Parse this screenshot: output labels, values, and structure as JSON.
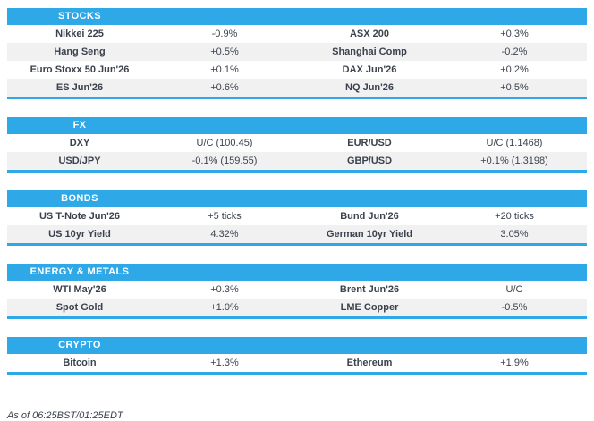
{
  "colors": {
    "header_bg": "#2FA8E8",
    "row_alt_bg": "#F1F1F2",
    "text": "#3B424E",
    "header_text": "#FFFFFF"
  },
  "sections": [
    {
      "title": "STOCKS",
      "rows": [
        [
          "Nikkei 225",
          "-0.9%",
          "ASX 200",
          "+0.3%"
        ],
        [
          "Hang Seng",
          "+0.5%",
          "Shanghai Comp",
          "-0.2%"
        ],
        [
          "Euro Stoxx 50 Jun'26",
          "+0.1%",
          "DAX Jun'26",
          "+0.2%"
        ],
        [
          "ES Jun'26",
          "+0.6%",
          "NQ Jun'26",
          "+0.5%"
        ]
      ]
    },
    {
      "title": "FX",
      "rows": [
        [
          "DXY",
          "U/C (100.45)",
          "EUR/USD",
          "U/C (1.1468)"
        ],
        [
          "USD/JPY",
          "-0.1% (159.55)",
          "GBP/USD",
          "+0.1% (1.3198)"
        ]
      ]
    },
    {
      "title": "BONDS",
      "rows": [
        [
          "US T-Note Jun'26",
          "+5 ticks",
          "Bund Jun'26",
          "+20 ticks"
        ],
        [
          "US 10yr Yield",
          "4.32%",
          "German 10yr Yield",
          "3.05%"
        ]
      ]
    },
    {
      "title": "ENERGY & METALS",
      "rows": [
        [
          "WTI May'26",
          "+0.3%",
          "Brent Jun'26",
          "U/C"
        ],
        [
          "Spot Gold",
          "+1.0%",
          "LME Copper",
          "-0.5%"
        ]
      ]
    },
    {
      "title": "CRYPTO",
      "rows": [
        [
          "Bitcoin",
          "+1.3%",
          "Ethereum",
          "+1.9%"
        ]
      ]
    }
  ],
  "footer": {
    "as_of": "As of 06:25BST/01:25EDT"
  }
}
